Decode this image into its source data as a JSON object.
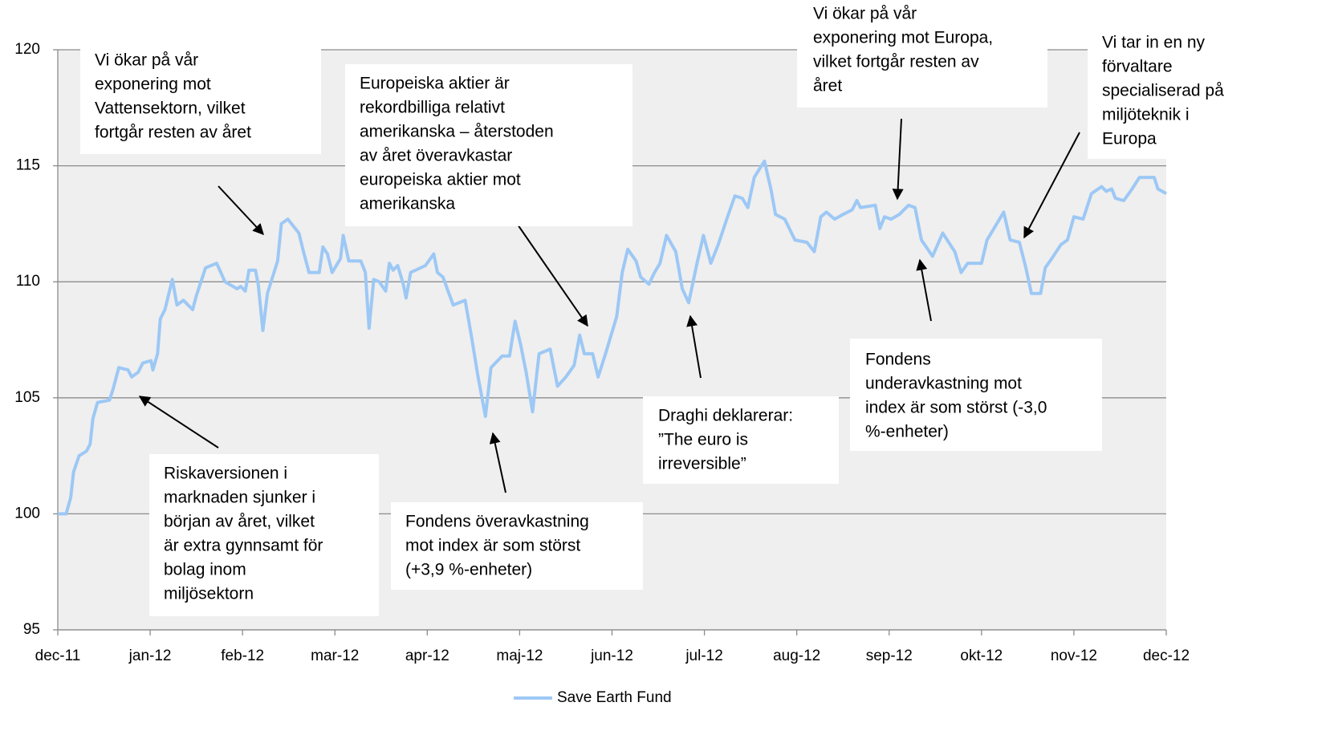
{
  "chart_data": {
    "type": "line",
    "x": [
      0,
      0.09,
      0.14,
      0.17,
      0.23,
      0.31,
      0.35,
      0.38,
      0.43,
      0.56,
      0.6,
      0.66,
      0.76,
      0.8,
      0.87,
      0.92,
      1.01,
      1.03,
      1.08,
      1.11,
      1.16,
      1.24,
      1.29,
      1.36,
      1.46,
      1.5,
      1.6,
      1.72,
      1.81,
      1.94,
      1.98,
      2.03,
      2.07,
      2.14,
      2.17,
      2.22,
      2.27,
      2.38,
      2.42,
      2.49,
      2.61,
      2.66,
      2.72,
      2.83,
      2.87,
      2.92,
      2.97,
      3.06,
      3.09,
      3.15,
      3.28,
      3.33,
      3.37,
      3.42,
      3.48,
      3.55,
      3.59,
      3.63,
      3.68,
      3.74,
      3.77,
      3.82,
      3.98,
      4.07,
      4.11,
      4.17,
      4.28,
      4.41,
      4.48,
      4.55,
      4.63,
      4.69,
      4.81,
      4.89,
      4.95,
      5.01,
      5.07,
      5.14,
      5.21,
      5.33,
      5.41,
      5.5,
      5.59,
      5.65,
      5.7,
      5.79,
      5.85,
      5.93,
      6.05,
      6.11,
      6.17,
      6.26,
      6.31,
      6.4,
      6.46,
      6.52,
      6.59,
      6.69,
      6.76,
      6.83,
      6.92,
      6.99,
      7.07,
      7.15,
      7.25,
      7.33,
      7.41,
      7.47,
      7.54,
      7.65,
      7.72,
      7.77,
      7.87,
      7.98,
      8.11,
      8.19,
      8.26,
      8.32,
      8.41,
      8.5,
      8.6,
      8.65,
      8.69,
      8.85,
      8.9,
      8.95,
      9.02,
      9.11,
      9.21,
      9.28,
      9.35,
      9.47,
      9.58,
      9.71,
      9.78,
      9.85,
      10.0,
      10.06,
      10.15,
      10.24,
      10.31,
      10.41,
      10.48,
      10.54,
      10.64,
      10.69,
      10.76,
      10.86,
      10.93,
      11.0,
      11.1,
      11.19,
      11.3,
      11.35,
      11.41,
      11.45,
      11.54,
      11.63,
      11.71,
      11.87,
      11.91,
      12.0
    ],
    "series": [
      {
        "name": "Save Earth Fund",
        "color": "#9dc8f5",
        "values": [
          100.0,
          100.0,
          100.7,
          101.8,
          102.5,
          102.7,
          103.0,
          104.1,
          104.8,
          104.9,
          105.4,
          106.3,
          106.2,
          105.9,
          106.1,
          106.5,
          106.6,
          106.2,
          106.9,
          108.4,
          108.8,
          110.1,
          109.0,
          109.2,
          108.8,
          109.4,
          110.6,
          110.8,
          110.0,
          109.7,
          109.8,
          109.6,
          110.5,
          110.5,
          109.9,
          107.9,
          109.5,
          110.9,
          112.5,
          112.7,
          112.1,
          111.3,
          110.4,
          110.4,
          111.5,
          111.2,
          110.4,
          111.0,
          112.0,
          110.9,
          110.9,
          110.4,
          108.0,
          110.1,
          110.0,
          109.6,
          110.8,
          110.5,
          110.7,
          109.9,
          109.3,
          110.4,
          110.7,
          111.2,
          110.4,
          110.2,
          109.0,
          109.2,
          107.6,
          105.9,
          104.2,
          106.3,
          106.8,
          106.8,
          108.3,
          107.3,
          106.1,
          104.4,
          106.9,
          107.1,
          105.5,
          105.9,
          106.4,
          107.7,
          106.9,
          106.9,
          105.9,
          106.9,
          108.5,
          110.4,
          111.4,
          110.9,
          110.2,
          109.9,
          110.4,
          110.8,
          112.0,
          111.3,
          109.7,
          109.1,
          110.8,
          112.0,
          110.8,
          111.6,
          112.8,
          113.7,
          113.6,
          113.2,
          114.5,
          115.2,
          114.0,
          112.9,
          112.7,
          111.8,
          111.7,
          111.3,
          112.8,
          113.0,
          112.7,
          112.9,
          113.1,
          113.5,
          113.2,
          113.3,
          112.3,
          112.8,
          112.7,
          112.9,
          113.3,
          113.2,
          111.8,
          111.1,
          112.1,
          111.3,
          110.4,
          110.8,
          110.8,
          111.8,
          112.4,
          113.0,
          111.8,
          111.7,
          110.6,
          109.5,
          109.5,
          110.6,
          111.0,
          111.6,
          111.8,
          112.8,
          112.7,
          113.8,
          114.1,
          113.9,
          114.0,
          113.6,
          113.5,
          114.0,
          114.5,
          114.5,
          114.0,
          113.8
        ]
      }
    ],
    "xlim": [
      0,
      12
    ],
    "xticks": [
      {
        "value": 0,
        "label": "dec-11"
      },
      {
        "value": 1,
        "label": "jan-12"
      },
      {
        "value": 2,
        "label": "feb-12"
      },
      {
        "value": 3,
        "label": "mar-12"
      },
      {
        "value": 4,
        "label": "apr-12"
      },
      {
        "value": 5,
        "label": "maj-12"
      },
      {
        "value": 6,
        "label": "jun-12"
      },
      {
        "value": 7,
        "label": "jul-12"
      },
      {
        "value": 8,
        "label": "aug-12"
      },
      {
        "value": 9,
        "label": "sep-12"
      },
      {
        "value": 10,
        "label": "okt-12"
      },
      {
        "value": 11,
        "label": "nov-12"
      },
      {
        "value": 12,
        "label": "dec-12"
      }
    ],
    "ylim": [
      95,
      120
    ],
    "yticks": [
      95,
      100,
      105,
      110,
      115,
      120
    ],
    "grid": true,
    "legend": "bottom",
    "annotations": [
      [
        "Vi ökar på vår",
        "exponering mot",
        "Vattensektorn, vilket",
        "fortgår resten av året"
      ],
      [
        "Europeiska aktier är",
        "rekordbilliga relativt",
        "amerikanska – återstoden",
        "av året överavkastar",
        "europeiska aktier mot",
        "amerikanska"
      ],
      [
        "Vi ökar på vår",
        "exponering mot Europa,",
        "vilket fortgår resten av",
        "året"
      ],
      [
        "Vi tar in en ny",
        "förvaltare",
        "specialiserad på",
        "miljöteknik i",
        "Europa"
      ],
      [
        "Riskaversionen i",
        "marknaden sjunker i",
        "början av året, vilket",
        "är extra gynnsamt för",
        "bolag inom",
        "miljösektorn"
      ],
      [
        "Fondens överavkastning",
        "mot index är som störst",
        "(+3,9 %-enheter)"
      ],
      [
        "Draghi deklarerar:",
        "”The euro is",
        "irreversible”"
      ],
      [
        "Fondens",
        "underavkastning mot",
        "index är som störst (-3,0",
        "%-enheter)"
      ]
    ]
  }
}
